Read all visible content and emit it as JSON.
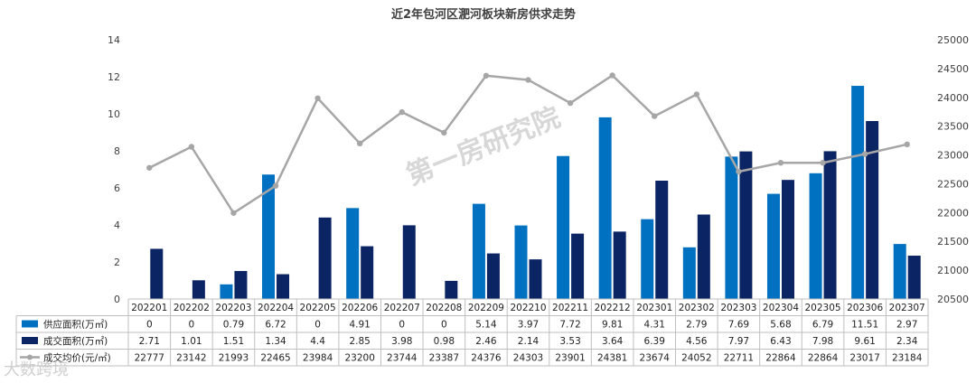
{
  "chart_data": {
    "type": "bar",
    "title": "近2年包河区淝河板块新房供求走势",
    "categories": [
      "202201",
      "202202",
      "202203",
      "202204",
      "202205",
      "202206",
      "202207",
      "202208",
      "202209",
      "202210",
      "202211",
      "202212",
      "202301",
      "202302",
      "202303",
      "202304",
      "202305",
      "202306",
      "202307"
    ],
    "series": [
      {
        "name": "供应面积(万㎡)",
        "type": "bar",
        "axis": "left",
        "color": "#0070c0",
        "values": [
          0,
          0,
          0.79,
          6.72,
          0,
          4.91,
          0,
          0,
          5.14,
          3.97,
          7.72,
          9.81,
          4.31,
          2.79,
          7.69,
          5.68,
          6.79,
          11.51,
          2.97
        ]
      },
      {
        "name": "成交面积(万㎡)",
        "type": "bar",
        "axis": "left",
        "color": "#0b2463",
        "values": [
          2.71,
          1.01,
          1.51,
          1.34,
          4.4,
          2.85,
          3.98,
          0.98,
          2.46,
          2.14,
          3.53,
          3.64,
          6.39,
          4.56,
          7.97,
          6.43,
          7.98,
          9.61,
          2.34
        ]
      },
      {
        "name": "成交均价(元/㎡)",
        "type": "line",
        "axis": "right",
        "color": "#a6a6a6",
        "values": [
          22777,
          23142,
          21993,
          22465,
          23984,
          23200,
          23744,
          23387,
          24376,
          24303,
          23901,
          24381,
          23674,
          24052,
          22711,
          22864,
          22864,
          23017,
          23184
        ]
      }
    ],
    "table_values": [
      [
        "0",
        "0",
        "0.79",
        "6.72",
        "0",
        "4.91",
        "0",
        "0",
        "5.14",
        "3.97",
        "7.72",
        "9.81",
        "4.31",
        "2.79",
        "7.69",
        "5.68",
        "6.79",
        "11.51",
        "2.97"
      ],
      [
        "2.71",
        "1.01",
        "1.51",
        "1.34",
        "4.4",
        "2.85",
        "3.98",
        "0.98",
        "2.46",
        "2.14",
        "3.53",
        "3.64",
        "6.39",
        "4.56",
        "7.97",
        "6.43",
        "7.98",
        "9.61",
        "2.34"
      ],
      [
        "22777",
        "23142",
        "21993",
        "22465",
        "23984",
        "23200",
        "23744",
        "23387",
        "24376",
        "24303",
        "23901",
        "24381",
        "23674",
        "24052",
        "22711",
        "22864",
        "22864",
        "23017",
        "23184"
      ]
    ],
    "ylim_left": [
      0,
      14
    ],
    "yticks_left": [
      "0",
      "2",
      "4",
      "6",
      "8",
      "10",
      "12",
      "14"
    ],
    "ylim_right": [
      20500,
      25000
    ],
    "yticks_right": [
      "20500",
      "21000",
      "21500",
      "22000",
      "22500",
      "23000",
      "23500",
      "24000",
      "24500",
      "25000"
    ],
    "grid": false,
    "legend": "data-table-left"
  },
  "watermark": "第一房研究院",
  "watermark_corner": "大数跨境"
}
